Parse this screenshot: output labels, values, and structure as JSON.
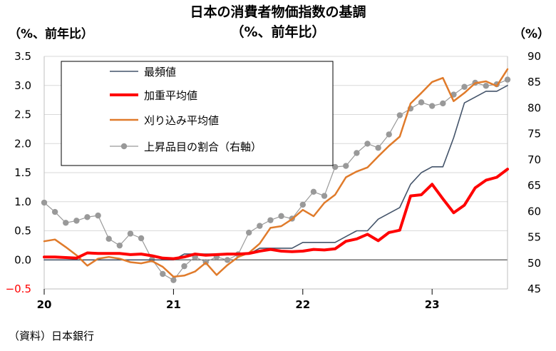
{
  "chart_data": {
    "type": "line",
    "title": "日本の消費者物価指数の基調",
    "subtitle": "（%、前年比）",
    "left_axis_label": "（%、前年比）",
    "right_axis_label": "（%）",
    "ylim_left": [
      -0.5,
      3.5
    ],
    "left_ticks": [
      "−0.5",
      "0.0",
      "0.5",
      "1.0",
      "1.5",
      "2.0",
      "2.5",
      "3.0",
      "3.5"
    ],
    "left_tick_values": [
      -0.5,
      0,
      0.5,
      1.0,
      1.5,
      2.0,
      2.5,
      3.0,
      3.5
    ],
    "ylim_right": [
      45,
      90
    ],
    "right_ticks": [
      "45",
      "50",
      "55",
      "60",
      "65",
      "70",
      "75",
      "80",
      "85",
      "90"
    ],
    "right_tick_values": [
      45,
      50,
      55,
      60,
      65,
      70,
      75,
      80,
      85,
      90
    ],
    "x_start_index": 0,
    "x_end_index": 43,
    "x_labels": [
      "20",
      "21",
      "22",
      "23"
    ],
    "x_label_index": [
      0,
      12,
      24,
      36
    ],
    "grid": "horizontal",
    "legend_position": "top-left",
    "series": [
      {
        "name": "最頻値",
        "color": "#44546a",
        "width": 1.6,
        "axis": "left",
        "marker": false,
        "values": [
          0.0,
          0.0,
          0.0,
          0.0,
          0.0,
          0.0,
          0.0,
          0.0,
          0.0,
          0.0,
          0.0,
          0.0,
          0.0,
          0.1,
          0.1,
          0.1,
          0.1,
          0.1,
          0.1,
          0.1,
          0.2,
          0.2,
          0.2,
          0.2,
          0.3,
          0.3,
          0.3,
          0.3,
          0.4,
          0.5,
          0.5,
          0.7,
          0.8,
          0.9,
          1.3,
          1.5,
          1.6,
          1.6,
          2.1,
          2.7,
          2.8,
          2.9,
          2.9,
          3.0
        ]
      },
      {
        "name": "加重平均値",
        "color": "#ff0000",
        "width": 4,
        "axis": "left",
        "marker": false,
        "values": [
          0.05,
          0.05,
          0.04,
          0.03,
          0.12,
          0.11,
          0.11,
          0.11,
          0.09,
          0.1,
          0.07,
          0.03,
          0.02,
          0.05,
          0.1,
          0.08,
          0.09,
          0.1,
          0.1,
          0.11,
          0.15,
          0.18,
          0.15,
          0.14,
          0.15,
          0.18,
          0.17,
          0.19,
          0.32,
          0.36,
          0.44,
          0.33,
          0.47,
          0.51,
          1.1,
          1.12,
          1.3,
          1.05,
          0.81,
          0.94,
          1.24,
          1.37,
          1.42,
          1.56
        ]
      },
      {
        "name": "刈り込み平均値",
        "color": "#e07b2b",
        "width": 2.5,
        "axis": "left",
        "marker": false,
        "values": [
          0.32,
          0.35,
          0.22,
          0.08,
          -0.1,
          0.02,
          0.05,
          0.02,
          -0.04,
          -0.06,
          -0.02,
          -0.12,
          -0.29,
          -0.27,
          -0.2,
          -0.05,
          -0.26,
          -0.09,
          0.05,
          0.12,
          0.28,
          0.55,
          0.58,
          0.7,
          0.86,
          0.75,
          0.98,
          1.12,
          1.42,
          1.52,
          1.59,
          1.78,
          1.96,
          2.12,
          2.69,
          2.87,
          3.06,
          3.13,
          2.73,
          2.87,
          3.04,
          3.07,
          2.99,
          3.28
        ]
      },
      {
        "name": "上昇品目の割合（右軸）",
        "color": "#999999",
        "width": 1.2,
        "axis": "right",
        "marker": true,
        "values": [
          61.7,
          59.9,
          57.8,
          58.2,
          58.9,
          59.2,
          54.7,
          53.4,
          55.7,
          54.8,
          50.7,
          47.9,
          46.7,
          49.4,
          51.2,
          50.2,
          51.2,
          50.6,
          51.7,
          55.9,
          57.2,
          58.3,
          59.1,
          58.6,
          61.3,
          63.8,
          63.0,
          68.6,
          68.8,
          71.3,
          73.1,
          72.3,
          74.9,
          78.6,
          79.9,
          81.1,
          80.4,
          80.9,
          82.6,
          84.1,
          84.9,
          84.3,
          84.6,
          85.5
        ]
      }
    ]
  },
  "source": "（資料）日本銀行"
}
